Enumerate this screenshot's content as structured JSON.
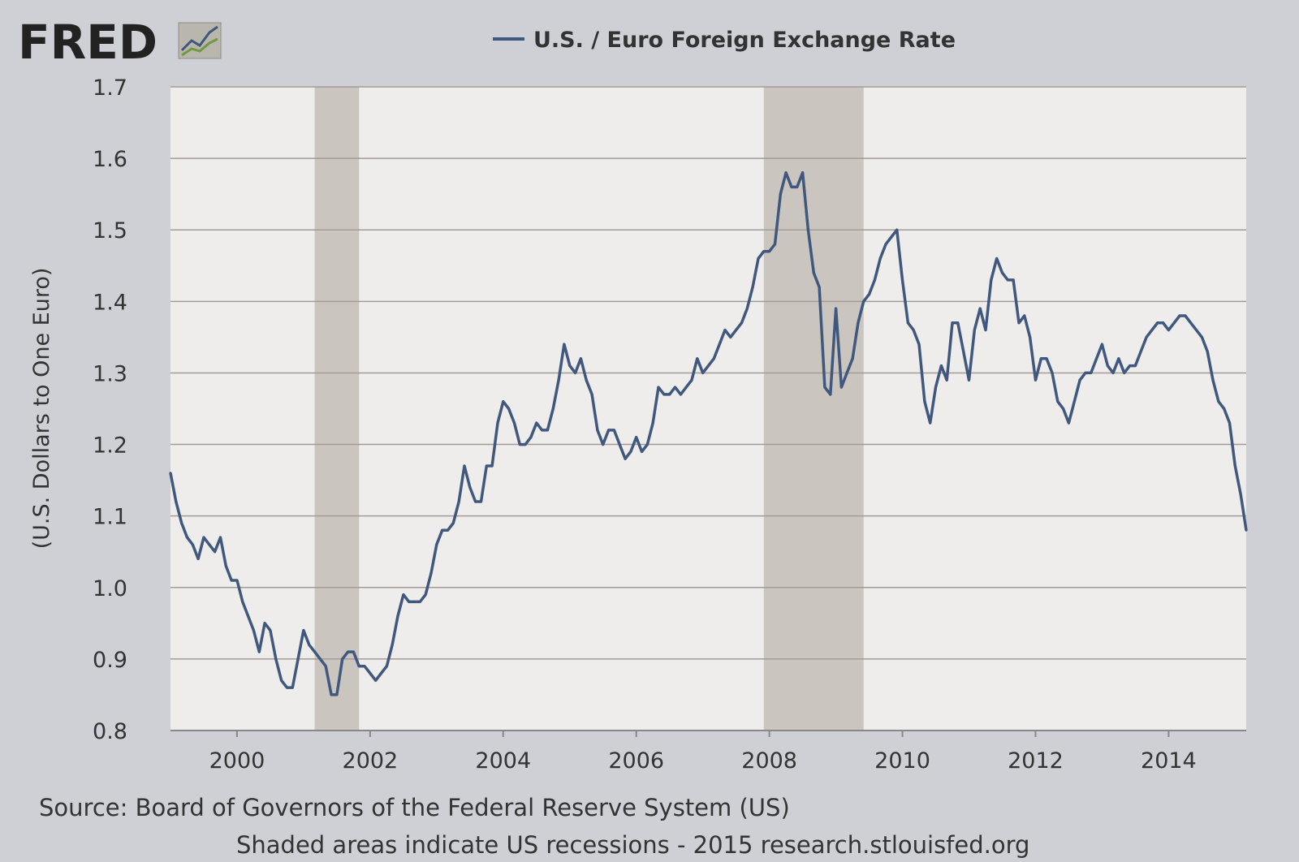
{
  "branding": {
    "logo_text": "FRED"
  },
  "colors": {
    "background": "#ced0d6",
    "plot_bg": "#eeedec",
    "grid": "#a59a95",
    "series": "#41587e",
    "recession": "#cbc5c0"
  },
  "chart_data": {
    "type": "line",
    "title": "U.S. / Euro Foreign Exchange Rate",
    "xlabel": "",
    "ylabel": "(U.S. Dollars to One Euro)",
    "ylim": [
      0.8,
      1.7
    ],
    "xlim": [
      "1999-01",
      "2015-03"
    ],
    "yticks": [
      "0.8",
      "0.9",
      "1.0",
      "1.1",
      "1.2",
      "1.3",
      "1.4",
      "1.5",
      "1.6",
      "1.7"
    ],
    "xticks": [
      "2000",
      "2002",
      "2004",
      "2006",
      "2008",
      "2010",
      "2012",
      "2014"
    ],
    "grid": true,
    "legend": "top-center",
    "recessions": [
      {
        "start": "2001-03",
        "end": "2001-11"
      },
      {
        "start": "2007-12",
        "end": "2009-06"
      }
    ],
    "series": [
      {
        "name": "U.S. / Euro Foreign Exchange Rate",
        "frequency": "monthly",
        "start": "1999-01",
        "values": [
          1.16,
          1.12,
          1.09,
          1.07,
          1.06,
          1.04,
          1.07,
          1.06,
          1.05,
          1.07,
          1.03,
          1.01,
          1.01,
          0.98,
          0.96,
          0.94,
          0.91,
          0.95,
          0.94,
          0.9,
          0.87,
          0.86,
          0.86,
          0.9,
          0.94,
          0.92,
          0.91,
          0.9,
          0.89,
          0.85,
          0.85,
          0.9,
          0.91,
          0.91,
          0.89,
          0.89,
          0.88,
          0.87,
          0.88,
          0.89,
          0.92,
          0.96,
          0.99,
          0.98,
          0.98,
          0.98,
          0.99,
          1.02,
          1.06,
          1.08,
          1.08,
          1.09,
          1.12,
          1.17,
          1.14,
          1.12,
          1.12,
          1.17,
          1.17,
          1.23,
          1.26,
          1.25,
          1.23,
          1.2,
          1.2,
          1.21,
          1.23,
          1.22,
          1.22,
          1.25,
          1.29,
          1.34,
          1.31,
          1.3,
          1.32,
          1.29,
          1.27,
          1.22,
          1.2,
          1.22,
          1.22,
          1.2,
          1.18,
          1.19,
          1.21,
          1.19,
          1.2,
          1.23,
          1.28,
          1.27,
          1.27,
          1.28,
          1.27,
          1.28,
          1.29,
          1.32,
          1.3,
          1.31,
          1.32,
          1.34,
          1.36,
          1.35,
          1.36,
          1.37,
          1.39,
          1.42,
          1.46,
          1.47,
          1.47,
          1.48,
          1.55,
          1.58,
          1.56,
          1.56,
          1.58,
          1.5,
          1.44,
          1.42,
          1.28,
          1.27,
          1.39,
          1.28,
          1.3,
          1.32,
          1.37,
          1.4,
          1.41,
          1.43,
          1.46,
          1.48,
          1.49,
          1.5,
          1.43,
          1.37,
          1.36,
          1.34,
          1.26,
          1.23,
          1.28,
          1.31,
          1.29,
          1.37,
          1.37,
          1.33,
          1.29,
          1.36,
          1.39,
          1.36,
          1.43,
          1.46,
          1.44,
          1.43,
          1.43,
          1.37,
          1.38,
          1.35,
          1.29,
          1.32,
          1.32,
          1.3,
          1.26,
          1.25,
          1.23,
          1.26,
          1.29,
          1.3,
          1.3,
          1.32,
          1.34,
          1.31,
          1.3,
          1.32,
          1.3,
          1.31,
          1.31,
          1.33,
          1.35,
          1.36,
          1.37,
          1.37,
          1.36,
          1.37,
          1.38,
          1.38,
          1.37,
          1.36,
          1.35,
          1.33,
          1.29,
          1.26,
          1.25,
          1.23,
          1.17,
          1.13,
          1.08
        ]
      }
    ]
  },
  "footer": {
    "source": "Source: Board of Governors of the Federal Reserve System (US)",
    "note": "Shaded areas indicate US recessions - 2015 research.stlouisfed.org"
  }
}
